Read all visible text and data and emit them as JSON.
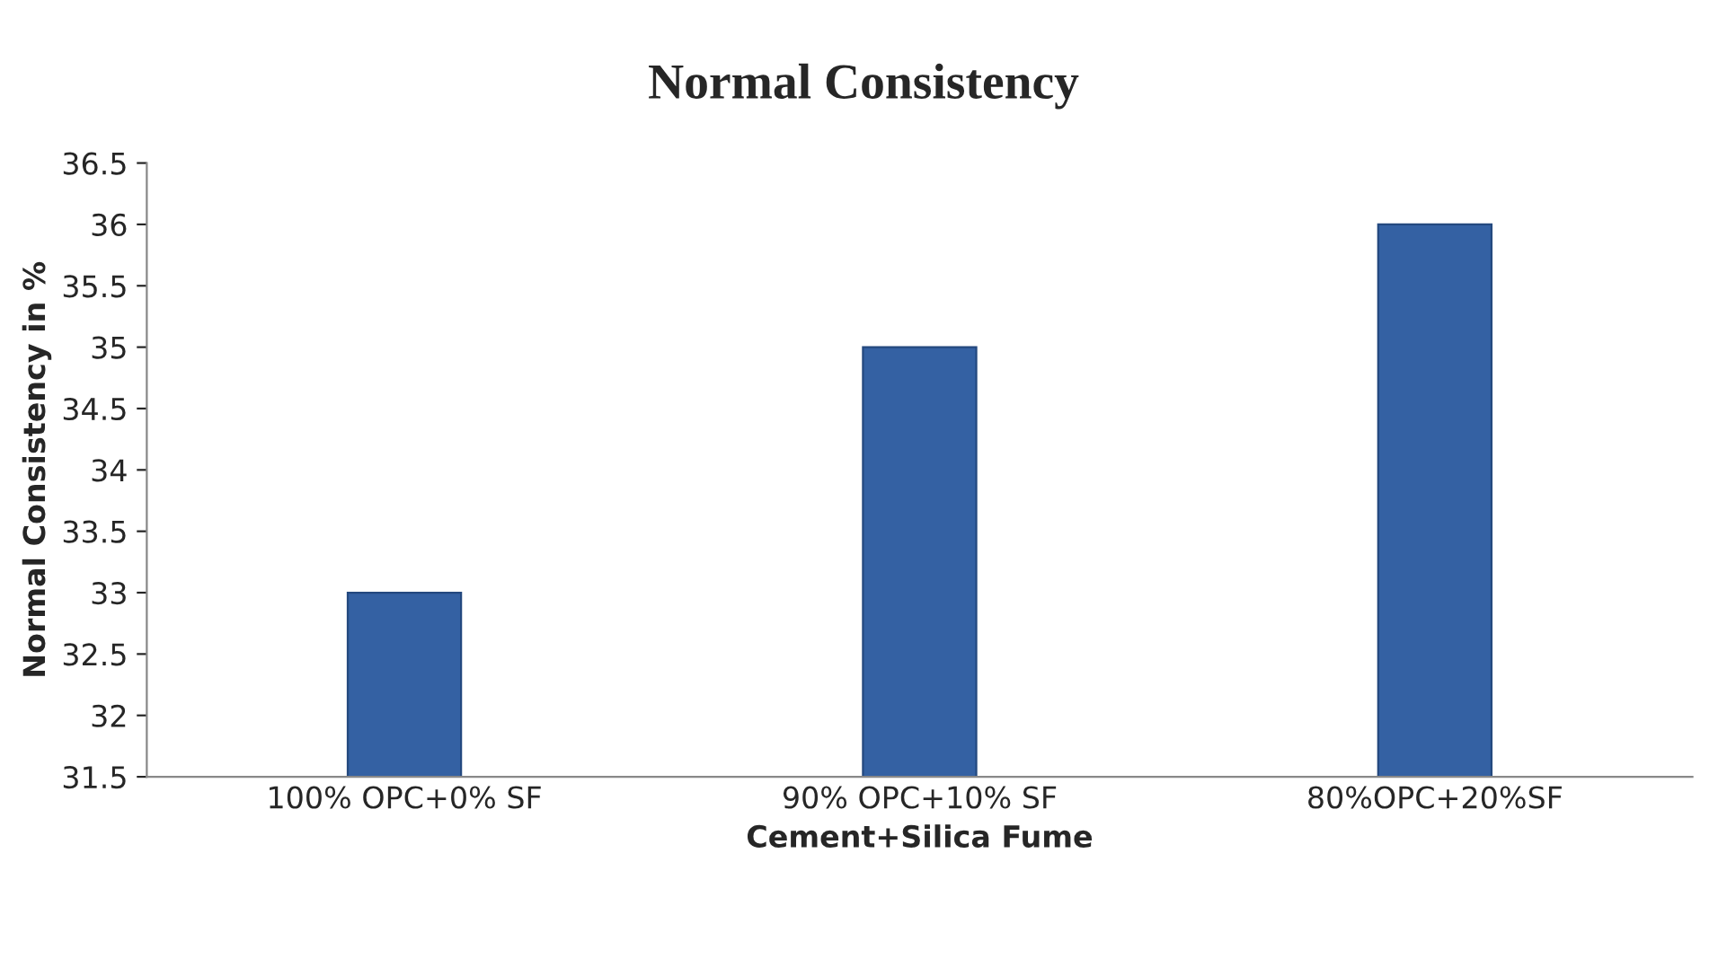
{
  "chart_data": {
    "type": "bar",
    "title": "Normal Consistency",
    "xlabel": "Cement+Silica Fume",
    "ylabel": "Normal Consistency in %",
    "categories": [
      "100% OPC+0% SF",
      "90% OPC+10% SF",
      "80%OPC+20%SF"
    ],
    "values": [
      33,
      35,
      36
    ],
    "color": "#3461a3",
    "ylim": [
      31.5,
      36.5
    ],
    "yticks": [
      31.5,
      32,
      32.5,
      33,
      33.5,
      34,
      34.5,
      35,
      35.5,
      36,
      36.5
    ],
    "grid": false,
    "legend": false
  }
}
